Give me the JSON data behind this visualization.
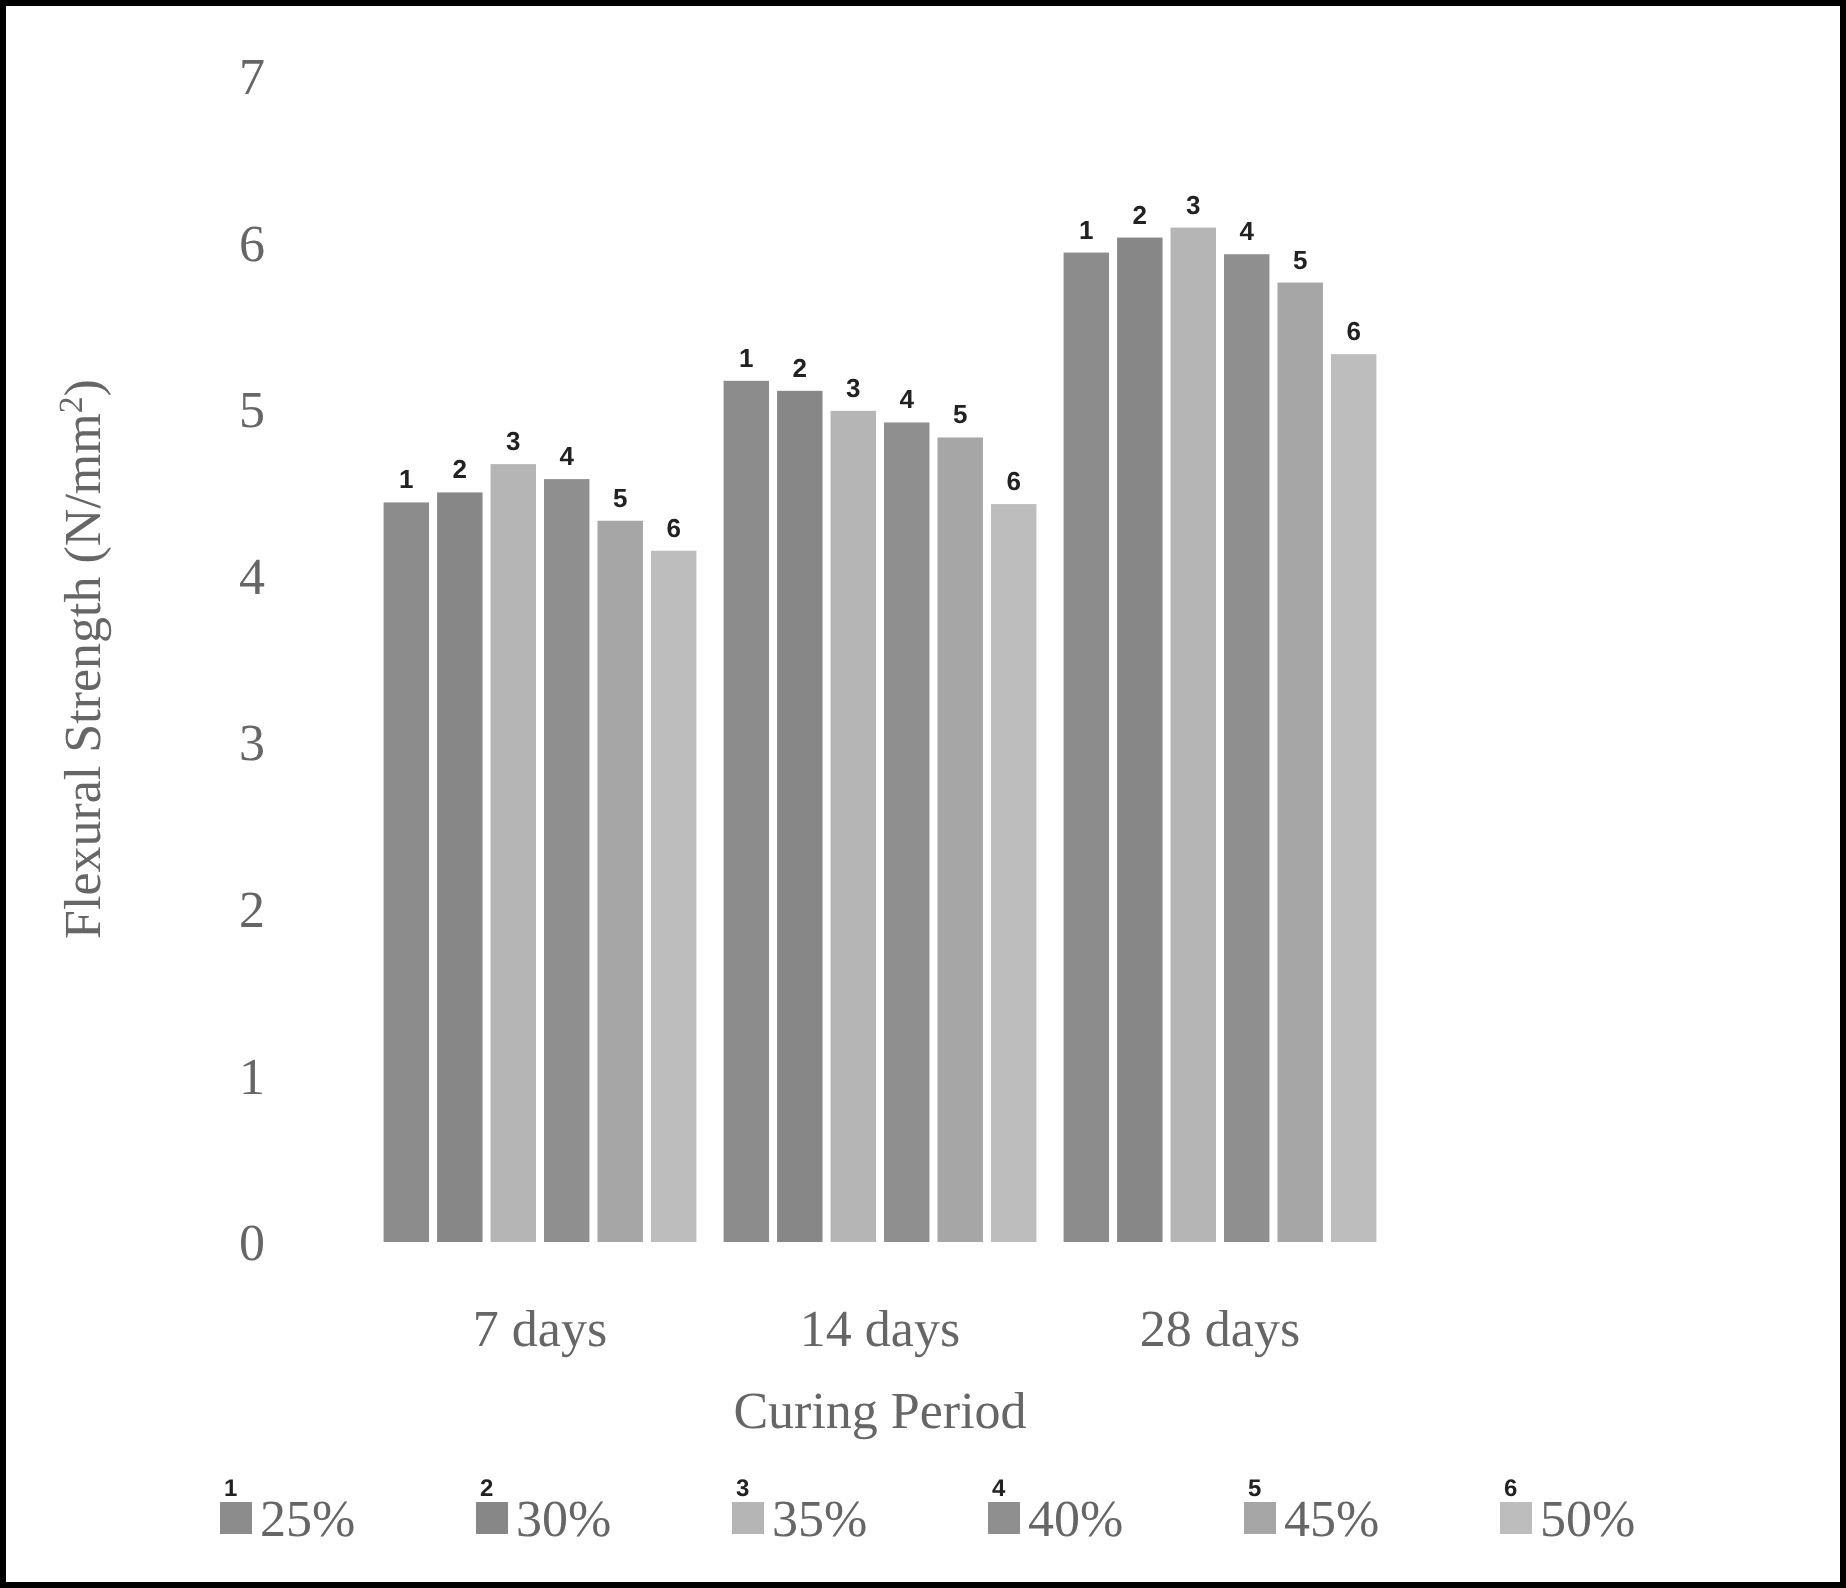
{
  "chart_data": {
    "type": "bar",
    "xlabel": "Curing Period",
    "ylabel": "Flexural Strength (N/mm$^{2}$)",
    "categories": [
      "7 days",
      "14 days",
      "28 days"
    ],
    "series": [
      {
        "name": "25%",
        "color": "#8c8c8c",
        "values": [
          4.44,
          5.17,
          5.94
        ]
      },
      {
        "name": "30%",
        "color": "#878787",
        "values": [
          4.5,
          5.11,
          6.03
        ]
      },
      {
        "name": "35%",
        "color": "#b5b5b5",
        "values": [
          4.67,
          4.99,
          6.09
        ]
      },
      {
        "name": "40%",
        "color": "#8f8f8f",
        "values": [
          4.58,
          4.92,
          5.93
        ]
      },
      {
        "name": "45%",
        "color": "#a6a6a6",
        "values": [
          4.33,
          4.83,
          5.76
        ]
      },
      {
        "name": "50%",
        "color": "#bdbdbd",
        "values": [
          4.15,
          4.43,
          5.33
        ]
      }
    ],
    "annotations": [
      "1",
      "2",
      "3",
      "4",
      "5",
      "6",
      "1",
      "2",
      "3",
      "4",
      "5",
      "6",
      "1",
      "2",
      "3",
      "4",
      "5",
      "6",
      "1",
      "2",
      "3",
      "4",
      "5",
      "6"
    ],
    "ylim": [
      0,
      7
    ],
    "yticks": [
      0,
      1,
      2,
      3,
      4,
      5,
      6,
      7
    ],
    "grid": false,
    "legend": "bottom"
  }
}
